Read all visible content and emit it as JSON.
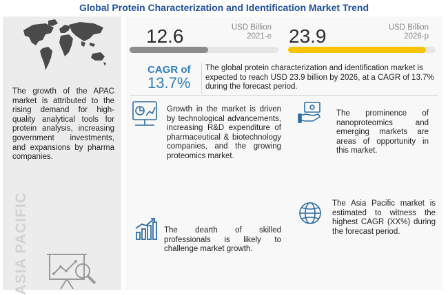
{
  "title": "Global Protein Characterization and Identification Market Trend",
  "left_panel": {
    "description": "The growth of the APAC market is attributed to the rising demand for high-quality analytical tools for protein analysis, increasing government investments, and expansions by pharma companies.",
    "region_label": "ASIA PACIFIC",
    "icons": [
      "world-map-icon",
      "analytics-chart-icon"
    ]
  },
  "market_size": {
    "current": {
      "value": "12.6",
      "unit": "USD Billion",
      "year": "2021-e",
      "progress_fraction": 0.527
    },
    "forecast": {
      "value": "23.9",
      "unit": "USD Billion",
      "year": "2026-p",
      "progress_fraction": 0.935
    }
  },
  "cagr": {
    "label": "CAGR of",
    "value": "13.7%",
    "description": "The global protein characterization and identification market is expected to reach USD 23.9 billion by 2026, at a CAGR of 13.7% during the forecast period."
  },
  "findings": {
    "drivers": {
      "text": "Growth in the market is driven by technological advancements, increasing R&D expenditure of pharmaceutical & biotechnology companies, and the growing proteomics market.",
      "icon": "growth-chart-icon"
    },
    "opportunities": {
      "text": "The prominence of nanoproteomics and emerging markets are areas of opportunity in this market.",
      "icon": "money-hand-icon"
    },
    "challenges": {
      "text": "The dearth of skilled professionals is likely to challenge market growth.",
      "icon": "bar-chart-arrow-icon"
    },
    "regional": {
      "text": "The Asia Pacific market is estimated to witness the highest CAGR (XX%) during the forecast period.",
      "icon": "globe-icon"
    }
  },
  "colors": {
    "title": "#1f4e9c",
    "cagr": "#2f7fc0",
    "bar_current": "#8c8c8c",
    "bar_forecast": "#f8c400",
    "icon_blue": "#2e6da4"
  }
}
